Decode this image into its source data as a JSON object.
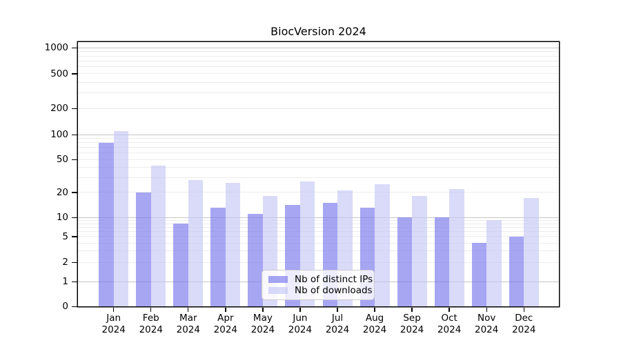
{
  "chart_data": {
    "type": "bar",
    "title": "BiocVersion 2024",
    "categories": [
      "Jan",
      "Feb",
      "Mar",
      "Apr",
      "May",
      "Jun",
      "Jul",
      "Aug",
      "Sep",
      "Oct",
      "Nov",
      "Dec"
    ],
    "category_year": "2024",
    "series": [
      {
        "name": "Nb of distinct IPs",
        "color": "rgba(112,112,235,0.62)",
        "values": [
          80,
          20,
          8,
          13,
          11,
          14,
          15,
          13,
          10,
          10,
          4,
          5
        ]
      },
      {
        "name": "Nb of downloads",
        "color": "rgba(196,196,246,0.62)",
        "values": [
          110,
          42,
          28,
          26,
          18,
          27,
          21,
          25,
          18,
          22,
          9,
          17
        ]
      }
    ],
    "y_ticks": [
      0,
      1,
      2,
      5,
      10,
      20,
      50,
      100,
      200,
      500,
      1000
    ],
    "ylim": [
      0,
      1000
    ],
    "yscale": "log",
    "grid": true,
    "legend_position": "inside-bottom-center",
    "colors": {
      "grid_major": "#c6c6c6",
      "grid_minor": "#ececec",
      "axis": "#000000",
      "background": "#ffffff"
    }
  }
}
